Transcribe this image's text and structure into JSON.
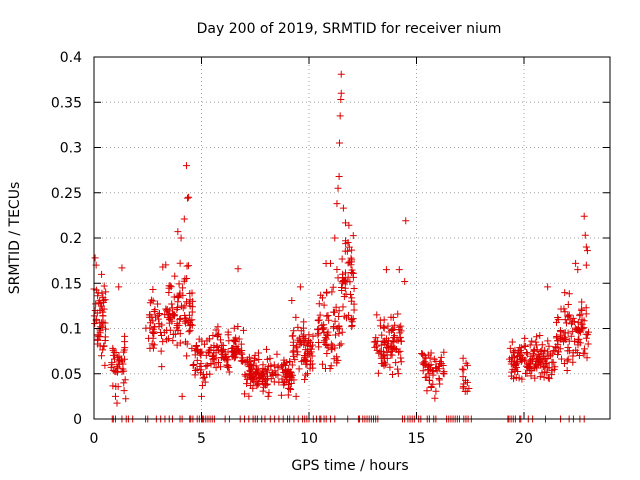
{
  "chart_data": {
    "type": "scatter",
    "title": "Day 200 of 2019, SRMTID for receiver nium",
    "xlabel": "GPS time / hours",
    "ylabel": "SRMTID / TECUs",
    "xlim": [
      0,
      24
    ],
    "ylim": [
      0,
      0.4
    ],
    "grid": true,
    "marker": "+",
    "colors": {
      "points": "#dd0000",
      "grid": "#a0a0a0",
      "frame": "#000000"
    },
    "x_ticks": [
      0,
      5,
      10,
      15,
      20
    ],
    "x_tick_labels": [
      "0",
      "5",
      "10",
      "15",
      "20"
    ],
    "y_ticks": [
      0,
      0.05,
      0.1,
      0.15,
      0.2,
      0.25,
      0.3,
      0.35,
      0.4
    ],
    "y_tick_labels": [
      "0",
      "0.05",
      "0.1",
      "0.15",
      "0.2",
      "0.25",
      "0.3",
      "0.35",
      "0.4"
    ],
    "clusters": [
      {
        "x": [
          0,
          0.6
        ],
        "center": 0.11,
        "spread": 0.035,
        "n": 55
      },
      {
        "x": [
          0.8,
          1.5
        ],
        "center": 0.06,
        "spread": 0.025,
        "n": 40
      },
      {
        "x": [
          2.4,
          3.7
        ],
        "center": 0.11,
        "spread": 0.035,
        "n": 70
      },
      {
        "x": [
          3.7,
          4.6
        ],
        "center": 0.12,
        "spread": 0.04,
        "n": 65
      },
      {
        "x": [
          4.6,
          5.5
        ],
        "center": 0.07,
        "spread": 0.025,
        "n": 45
      },
      {
        "x": [
          5.5,
          7.0
        ],
        "center": 0.075,
        "spread": 0.02,
        "n": 90
      },
      {
        "x": [
          7.0,
          9.2
        ],
        "center": 0.05,
        "spread": 0.018,
        "n": 150
      },
      {
        "x": [
          9.2,
          10.2
        ],
        "center": 0.075,
        "spread": 0.025,
        "n": 70
      },
      {
        "x": [
          10.4,
          11.5
        ],
        "center": 0.1,
        "spread": 0.04,
        "n": 70
      },
      {
        "x": [
          11.5,
          12.1
        ],
        "center": 0.15,
        "spread": 0.05,
        "n": 55
      },
      {
        "x": [
          13.0,
          14.3
        ],
        "center": 0.085,
        "spread": 0.025,
        "n": 85
      },
      {
        "x": [
          15.2,
          16.3
        ],
        "center": 0.055,
        "spread": 0.02,
        "n": 55
      },
      {
        "x": [
          17.1,
          17.5
        ],
        "center": 0.05,
        "spread": 0.015,
        "n": 14
      },
      {
        "x": [
          19.3,
          21.5
        ],
        "center": 0.065,
        "spread": 0.02,
        "n": 140
      },
      {
        "x": [
          21.5,
          23.0
        ],
        "center": 0.095,
        "spread": 0.03,
        "n": 95
      }
    ],
    "peaks": [
      {
        "x": 0.05,
        "y": 0.178
      },
      {
        "x": 0.1,
        "y": 0.17
      },
      {
        "x": 1.3,
        "y": 0.167
      },
      {
        "x": 1.15,
        "y": 0.146
      },
      {
        "x": 3.2,
        "y": 0.168
      },
      {
        "x": 3.9,
        "y": 0.207
      },
      {
        "x": 4.05,
        "y": 0.2
      },
      {
        "x": 4.2,
        "y": 0.221
      },
      {
        "x": 4.3,
        "y": 0.28
      },
      {
        "x": 4.35,
        "y": 0.244
      },
      {
        "x": 4.4,
        "y": 0.245
      },
      {
        "x": 6.7,
        "y": 0.166
      },
      {
        "x": 9.2,
        "y": 0.131
      },
      {
        "x": 9.6,
        "y": 0.146
      },
      {
        "x": 11.0,
        "y": 0.172
      },
      {
        "x": 11.2,
        "y": 0.2
      },
      {
        "x": 11.3,
        "y": 0.238
      },
      {
        "x": 11.35,
        "y": 0.255
      },
      {
        "x": 11.4,
        "y": 0.268
      },
      {
        "x": 11.42,
        "y": 0.305
      },
      {
        "x": 11.45,
        "y": 0.335
      },
      {
        "x": 11.48,
        "y": 0.353
      },
      {
        "x": 11.5,
        "y": 0.36
      },
      {
        "x": 11.5,
        "y": 0.381
      },
      {
        "x": 11.6,
        "y": 0.233
      },
      {
        "x": 11.7,
        "y": 0.197
      },
      {
        "x": 13.6,
        "y": 0.165
      },
      {
        "x": 14.2,
        "y": 0.165
      },
      {
        "x": 14.5,
        "y": 0.219
      },
      {
        "x": 14.45,
        "y": 0.152
      },
      {
        "x": 21.1,
        "y": 0.146
      },
      {
        "x": 22.4,
        "y": 0.172
      },
      {
        "x": 22.5,
        "y": 0.165
      },
      {
        "x": 22.8,
        "y": 0.224
      },
      {
        "x": 22.85,
        "y": 0.203
      },
      {
        "x": 22.9,
        "y": 0.19
      },
      {
        "x": 22.95,
        "y": 0.186
      },
      {
        "x": 22.9,
        "y": 0.17
      },
      {
        "x": 4.1,
        "y": 0.025
      },
      {
        "x": 1.0,
        "y": 0.025
      },
      {
        "x": 5.0,
        "y": 0.025
      },
      {
        "x": 8.1,
        "y": 0.025
      },
      {
        "x": 9.4,
        "y": 0.025
      }
    ],
    "baseline_points": {
      "y": 0,
      "x": [
        0.85,
        0.9,
        1.0,
        1.3,
        1.5,
        1.6,
        1.8,
        2.4,
        2.5,
        2.9,
        3.1,
        3.3,
        3.5,
        3.65,
        4.0,
        4.1,
        4.45,
        4.5,
        4.6,
        4.8,
        4.9,
        5.0,
        5.05,
        5.1,
        5.2,
        5.3,
        5.4,
        5.5,
        5.6,
        6.1,
        6.3,
        6.8,
        7.0,
        7.2,
        7.4,
        7.5,
        7.6,
        7.8,
        7.95,
        8.2,
        8.4,
        8.6,
        8.8,
        9.0,
        9.1,
        9.3,
        9.5,
        9.7,
        9.8,
        9.9,
        10.0,
        10.2,
        10.35,
        10.5,
        10.55,
        10.7,
        10.8,
        11.0,
        11.2,
        11.8,
        12.3,
        12.35,
        12.5,
        12.6,
        12.7,
        12.8,
        12.9,
        13.0,
        13.1,
        13.2,
        14.35,
        14.45,
        14.6,
        14.7,
        14.8,
        14.9,
        15.1,
        15.2,
        15.5,
        15.6,
        15.8,
        15.9,
        16.4,
        16.5,
        16.6,
        16.7,
        16.8,
        16.9,
        17.0,
        17.2,
        17.3,
        17.4,
        17.55,
        19.25,
        19.3,
        19.4,
        19.5,
        19.6,
        19.8,
        19.85,
        20.2,
        20.4,
        21.0,
        21.7,
        22.1,
        22.3,
        22.6,
        22.8
      ]
    }
  }
}
